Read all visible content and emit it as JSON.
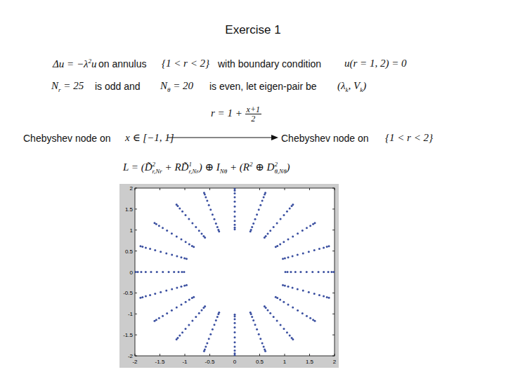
{
  "header": {
    "title": "Exercise 1"
  },
  "items": [
    {
      "tokens": [
        "Δu = −",
        {
          "base": "λ",
          "sup": "2"
        },
        "u"
      ]
    },
    {
      "tokens": [
        "on annulus"
      ]
    },
    {
      "tokens": [
        "{1 < r < 2}"
      ]
    },
    {
      "tokens": [
        "with  boundary condition"
      ]
    },
    {
      "tokens": [
        "u(r = 1, 2) = 0"
      ]
    },
    {
      "tokens": [
        {
          "base": "N",
          "sub": "r"
        },
        " = 25"
      ]
    },
    {
      "tokens": [
        "is odd and"
      ]
    },
    {
      "tokens": [
        {
          "base": "N",
          "sub": "θ"
        },
        " = 20"
      ]
    },
    {
      "tokens": [
        "is even, let eigen-pair be"
      ]
    },
    {
      "tokens": [
        "(",
        {
          "base": "λ",
          "sub": "k"
        },
        ", ",
        {
          "base": "V",
          "sub": "k"
        },
        ")"
      ]
    },
    {
      "tokens": [
        "r = 1 + ",
        {
          "num": "x+1",
          "den": "2"
        }
      ]
    },
    {
      "tokens": [
        "Chebyshev node on"
      ]
    },
    {
      "tokens": [
        "x ∈ [−1, 1]"
      ]
    },
    {
      "tokens": [
        "Chebyshev node on"
      ]
    },
    {
      "tokens": [
        "{1 < r < 2}"
      ]
    },
    {
      "tokens": [
        "L = (",
        {
          "base": "D̃",
          "sup": "2",
          "sub": "r,Nr"
        },
        " + R",
        {
          "base": "D̃",
          "sup": "1",
          "sub": "r,Nr"
        },
        ") ⊕ ",
        {
          "base": "I",
          "sub": "Nθ"
        },
        " + (",
        {
          "base": "R",
          "sup": "2"
        },
        " ⊕ ",
        {
          "base": "D",
          "sup": "2",
          "sub": "θ,Nθ"
        },
        ")"
      ]
    }
  ],
  "chart_data": {
    "type": "scatter",
    "marker": "dot",
    "color": "#3a4fa0",
    "theta": [
      0,
      18,
      36,
      54,
      72,
      90,
      108,
      126,
      144,
      162,
      180,
      198,
      216,
      234,
      252,
      270,
      288,
      306,
      324,
      342
    ],
    "r": [
      1.015,
      1.057,
      1.126,
      1.216,
      1.323,
      1.44,
      1.56,
      1.677,
      1.784,
      1.874,
      1.943,
      1.985
    ],
    "xlim": [
      -2,
      2
    ],
    "ylim": [
      -2,
      2
    ],
    "xticks": [
      -2,
      -1.5,
      -1,
      -0.5,
      0,
      0.5,
      1,
      1.5,
      2
    ],
    "yticks": [
      -2,
      -1.5,
      -1,
      -0.5,
      0,
      0.5,
      1,
      1.5,
      2
    ],
    "grid": false
  }
}
